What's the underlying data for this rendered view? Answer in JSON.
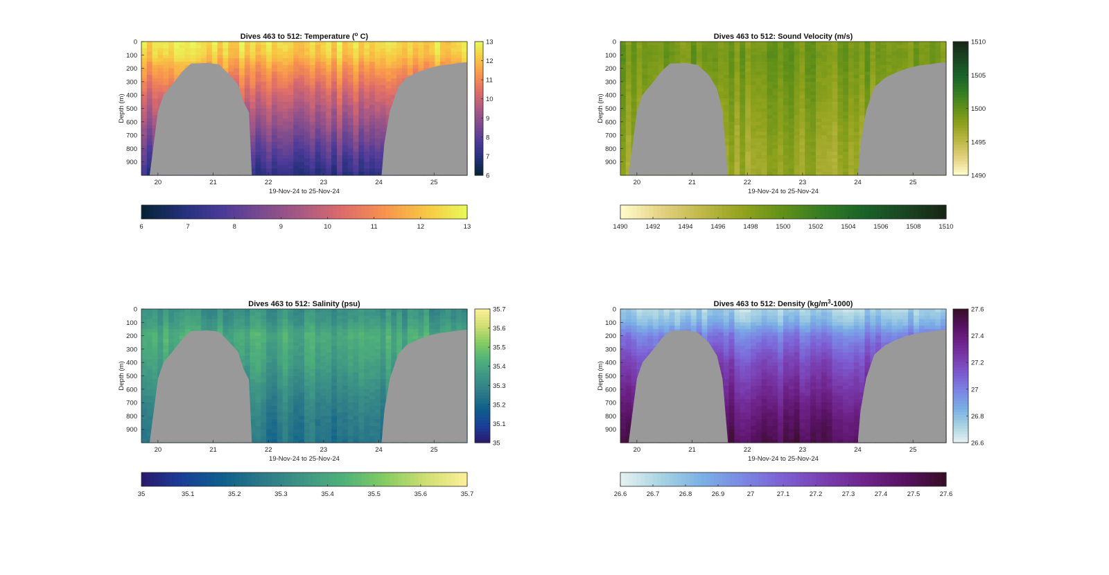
{
  "figure": {
    "background": "#ffffff",
    "seafloor_color": "#999999"
  },
  "chart_data": [
    {
      "type": "heatmap",
      "title": "Dives 463 to 512: Temperature (° C)",
      "title_parts": [
        "Dives 463 to 512: Temperature (",
        "o",
        " C)"
      ],
      "xlabel": "19-Nov-24 to 25-Nov-24",
      "ylabel": "Depth (m)",
      "xlim": [
        19.7,
        25.6
      ],
      "ylim": [
        1000,
        0
      ],
      "x_ticks": [
        "20",
        "21",
        "22",
        "23",
        "24",
        "25"
      ],
      "y_ticks": [
        "0",
        "100",
        "200",
        "300",
        "400",
        "500",
        "600",
        "700",
        "800",
        "900"
      ],
      "colormap": "thermal",
      "clim": [
        6,
        13
      ],
      "colorbar_ticks": [
        "6",
        "7",
        "8",
        "9",
        "10",
        "11",
        "12",
        "13"
      ],
      "horizontal_colorbar_ticks": [
        "6",
        "7",
        "8",
        "9",
        "10",
        "11",
        "12",
        "13"
      ],
      "profile": {
        "depth": [
          0,
          100,
          200,
          400,
          600,
          800,
          1000
        ],
        "value": [
          12.5,
          12.2,
          11.4,
          10.2,
          9.2,
          8.2,
          7.2
        ]
      },
      "seafloor": [
        {
          "x": [
            19.85,
            20.0,
            20.1,
            20.3,
            20.45,
            20.6,
            20.9,
            21.1,
            21.25,
            21.45,
            21.55,
            21.65,
            21.7
          ],
          "depth": [
            1000,
            520,
            400,
            300,
            220,
            165,
            160,
            170,
            230,
            320,
            450,
            530,
            1000
          ]
        },
        {
          "x": [
            24.05,
            24.1,
            24.2,
            24.35,
            24.5,
            24.7,
            24.9,
            25.1,
            25.3,
            25.45,
            25.6
          ],
          "depth": [
            1000,
            760,
            520,
            340,
            270,
            230,
            200,
            180,
            170,
            160,
            155
          ]
        }
      ]
    },
    {
      "type": "heatmap",
      "title": "Dives 463 to 512: Sound Velocity (m/s)",
      "title_parts": [
        "Dives 463 to 512: Sound Velocity (m/s)",
        "",
        ""
      ],
      "xlabel": "19-Nov-24 to 25-Nov-24",
      "ylabel": "Depth (m)",
      "xlim": [
        19.7,
        25.6
      ],
      "ylim": [
        1000,
        0
      ],
      "x_ticks": [
        "20",
        "21",
        "22",
        "23",
        "24",
        "25"
      ],
      "y_ticks": [
        "0",
        "100",
        "200",
        "300",
        "400",
        "500",
        "600",
        "700",
        "800",
        "900"
      ],
      "colormap": "speed",
      "clim": [
        1490,
        1510
      ],
      "colorbar_ticks": [
        "1490",
        "1495",
        "1500",
        "1505",
        "1510"
      ],
      "horizontal_colorbar_ticks": [
        "1490",
        "1492",
        "1494",
        "1496",
        "1498",
        "1500",
        "1502",
        "1504",
        "1506",
        "1508",
        "1510"
      ],
      "profile": {
        "depth": [
          0,
          100,
          200,
          400,
          600,
          800,
          1000
        ],
        "value": [
          1498.8,
          1499.4,
          1499.0,
          1498.4,
          1497.8,
          1497.2,
          1497.0
        ]
      },
      "seafloor": [
        {
          "x": [
            19.85,
            20.0,
            20.1,
            20.3,
            20.45,
            20.6,
            20.9,
            21.1,
            21.3,
            21.45,
            21.55,
            21.65
          ],
          "depth": [
            1000,
            520,
            400,
            300,
            220,
            165,
            160,
            175,
            250,
            350,
            520,
            1000
          ]
        },
        {
          "x": [
            24.0,
            24.05,
            24.15,
            24.3,
            24.5,
            24.7,
            24.9,
            25.1,
            25.3,
            25.45,
            25.6
          ],
          "depth": [
            1000,
            760,
            520,
            340,
            270,
            230,
            200,
            180,
            170,
            160,
            155
          ]
        }
      ]
    },
    {
      "type": "heatmap",
      "title": "Dives 463 to 512: Salinity (psu)",
      "title_parts": [
        "Dives 463 to 512: Salinity (psu)",
        "",
        ""
      ],
      "xlabel": "19-Nov-24 to 25-Nov-24",
      "ylabel": "Depth (m)",
      "xlim": [
        19.7,
        25.6
      ],
      "ylim": [
        1000,
        0
      ],
      "x_ticks": [
        "20",
        "21",
        "22",
        "23",
        "24",
        "25"
      ],
      "y_ticks": [
        "0",
        "100",
        "200",
        "300",
        "400",
        "500",
        "600",
        "700",
        "800",
        "900"
      ],
      "colormap": "haline",
      "clim": [
        35,
        35.7
      ],
      "colorbar_ticks": [
        "35",
        "35.1",
        "35.2",
        "35.3",
        "35.4",
        "35.5",
        "35.6",
        "35.7"
      ],
      "horizontal_colorbar_ticks": [
        "35",
        "35.1",
        "35.2",
        "35.3",
        "35.4",
        "35.5",
        "35.6",
        "35.7"
      ],
      "profile": {
        "depth": [
          0,
          100,
          200,
          400,
          600,
          800,
          1000
        ],
        "value": [
          35.33,
          35.36,
          35.42,
          35.38,
          35.32,
          35.27,
          35.24
        ]
      },
      "seafloor": [
        {
          "x": [
            19.85,
            20.0,
            20.1,
            20.3,
            20.45,
            20.6,
            20.9,
            21.1,
            21.25,
            21.45,
            21.55,
            21.65,
            21.7
          ],
          "depth": [
            1000,
            520,
            400,
            300,
            220,
            165,
            160,
            170,
            230,
            320,
            450,
            530,
            1000
          ]
        },
        {
          "x": [
            24.05,
            24.1,
            24.2,
            24.35,
            24.5,
            24.7,
            24.9,
            25.1,
            25.3,
            25.45,
            25.6
          ],
          "depth": [
            1000,
            760,
            520,
            340,
            270,
            230,
            200,
            180,
            170,
            160,
            155
          ]
        }
      ]
    },
    {
      "type": "heatmap",
      "title": "Dives 463 to 512: Density (kg/m³-1000)",
      "title_parts": [
        "Dives 463 to 512: Density (kg/m",
        "3",
        "-1000)"
      ],
      "xlabel": "19-Nov-24 to 25-Nov-24",
      "ylabel": "Depth (m)",
      "xlim": [
        19.7,
        25.6
      ],
      "ylim": [
        1000,
        0
      ],
      "x_ticks": [
        "20",
        "21",
        "22",
        "23",
        "24",
        "25"
      ],
      "y_ticks": [
        "0",
        "100",
        "200",
        "300",
        "400",
        "500",
        "600",
        "700",
        "800",
        "900"
      ],
      "colormap": "dense",
      "clim": [
        26.6,
        27.6
      ],
      "colorbar_ticks": [
        "26.6",
        "26.8",
        "27",
        "27.2",
        "27.4",
        "27.6"
      ],
      "horizontal_colorbar_ticks": [
        "26.6",
        "26.7",
        "26.8",
        "26.9",
        "27",
        "27.1",
        "27.2",
        "27.3",
        "27.4",
        "27.5",
        "27.6"
      ],
      "profile": {
        "depth": [
          0,
          100,
          200,
          400,
          600,
          800,
          1000
        ],
        "value": [
          26.72,
          26.82,
          27.0,
          27.18,
          27.3,
          27.42,
          27.5
        ]
      },
      "seafloor": [
        {
          "x": [
            19.85,
            20.0,
            20.1,
            20.3,
            20.45,
            20.6,
            20.9,
            21.1,
            21.3,
            21.45,
            21.55,
            21.65
          ],
          "depth": [
            1000,
            520,
            400,
            300,
            220,
            165,
            160,
            175,
            250,
            350,
            520,
            1000
          ]
        },
        {
          "x": [
            24.0,
            24.05,
            24.15,
            24.3,
            24.5,
            24.7,
            24.9,
            25.1,
            25.3,
            25.45,
            25.6
          ],
          "depth": [
            1000,
            760,
            520,
            340,
            270,
            230,
            200,
            180,
            170,
            160,
            155
          ]
        }
      ]
    }
  ]
}
